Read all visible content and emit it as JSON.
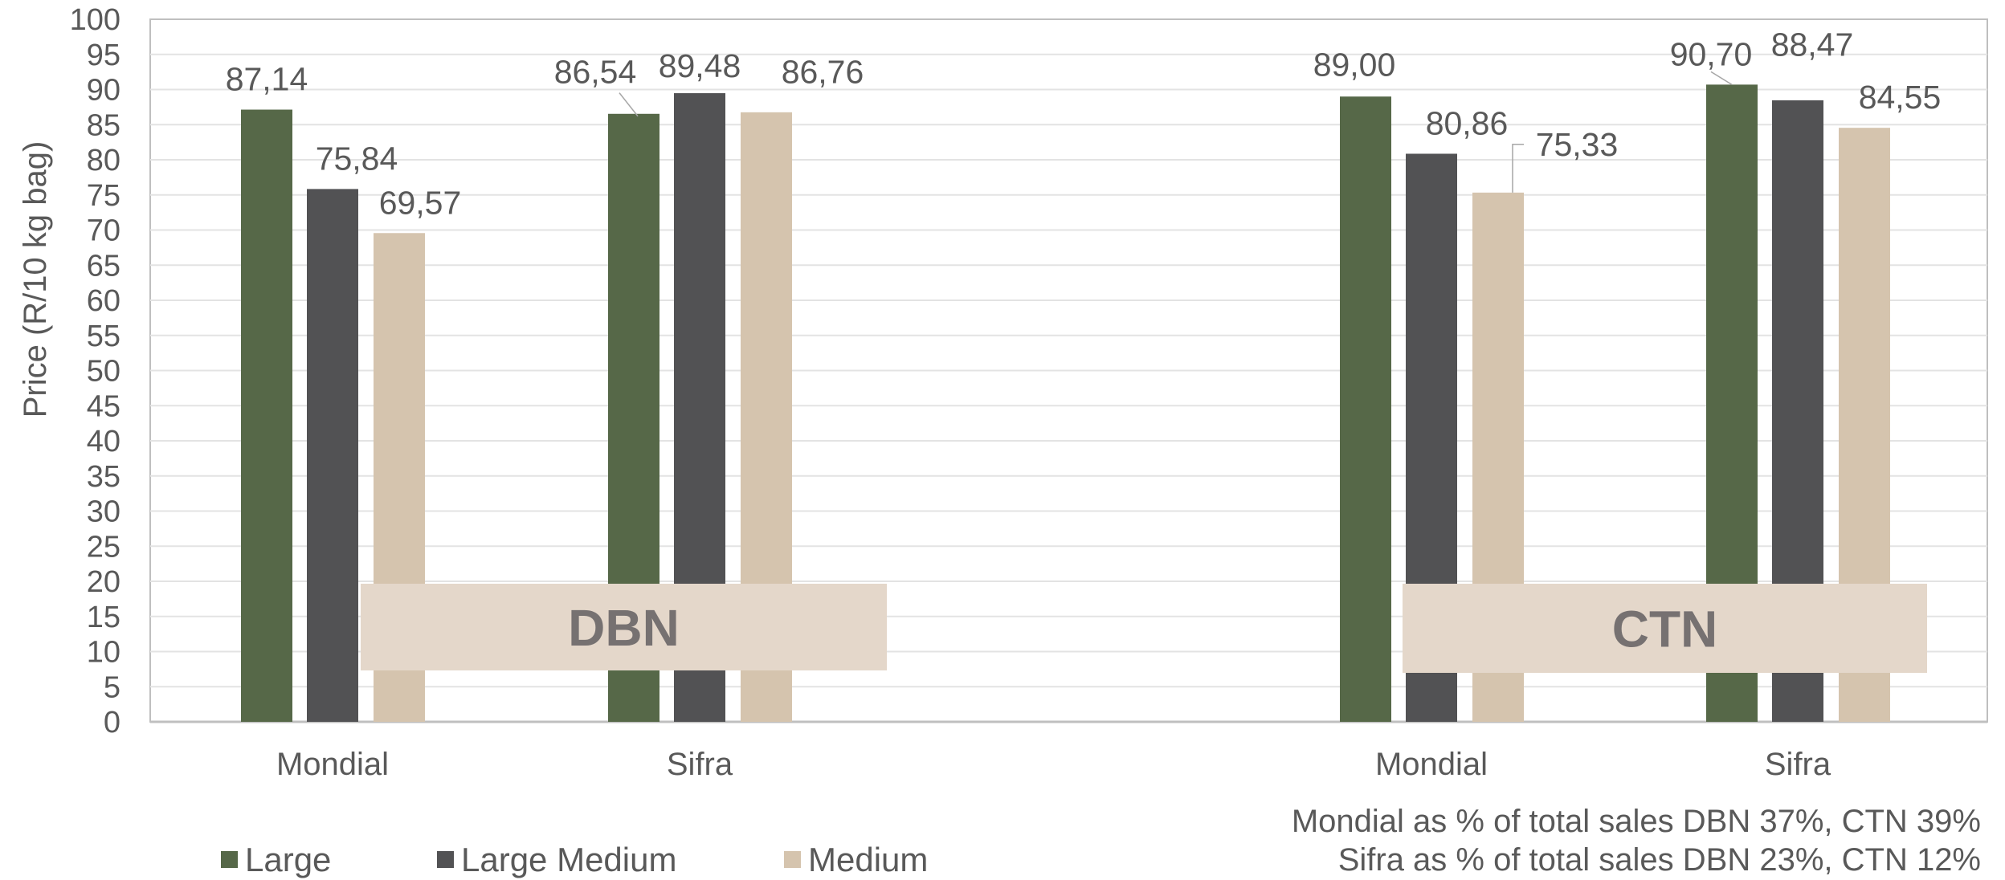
{
  "chart_data": {
    "type": "bar",
    "ylabel": "Price (R/10 kg bag)",
    "ylim": [
      0,
      100
    ],
    "yticks": [
      0,
      5,
      10,
      15,
      20,
      25,
      30,
      35,
      40,
      45,
      50,
      55,
      60,
      65,
      70,
      75,
      80,
      85,
      90,
      95,
      100
    ],
    "grid": true,
    "legend_position": "bottom-left",
    "groups": [
      "DBN",
      "CTN"
    ],
    "categories": [
      "Mondial",
      "Sifra",
      "Mondial",
      "Sifra"
    ],
    "series": [
      {
        "name": "Large",
        "color": "#566848",
        "values": [
          87.14,
          86.54,
          89.0,
          90.7
        ],
        "labels": [
          "87,14",
          "86,54",
          "89,00",
          "90,70"
        ]
      },
      {
        "name": "Large Medium",
        "color": "#525254",
        "values": [
          75.84,
          89.48,
          80.86,
          88.47
        ],
        "labels": [
          "75,84",
          "89,48",
          "80,86",
          "88,47"
        ]
      },
      {
        "name": "Medium",
        "color": "#D5C4AE",
        "values": [
          69.57,
          86.76,
          75.33,
          84.55
        ],
        "labels": [
          "69,57",
          "86,76",
          "75,33",
          "84,55"
        ]
      }
    ],
    "annotations": [
      "Mondial as % of total sales DBN 37%, CTN 39%",
      "Sifra as % of total sales DBN 23%, CTN 12%"
    ]
  }
}
